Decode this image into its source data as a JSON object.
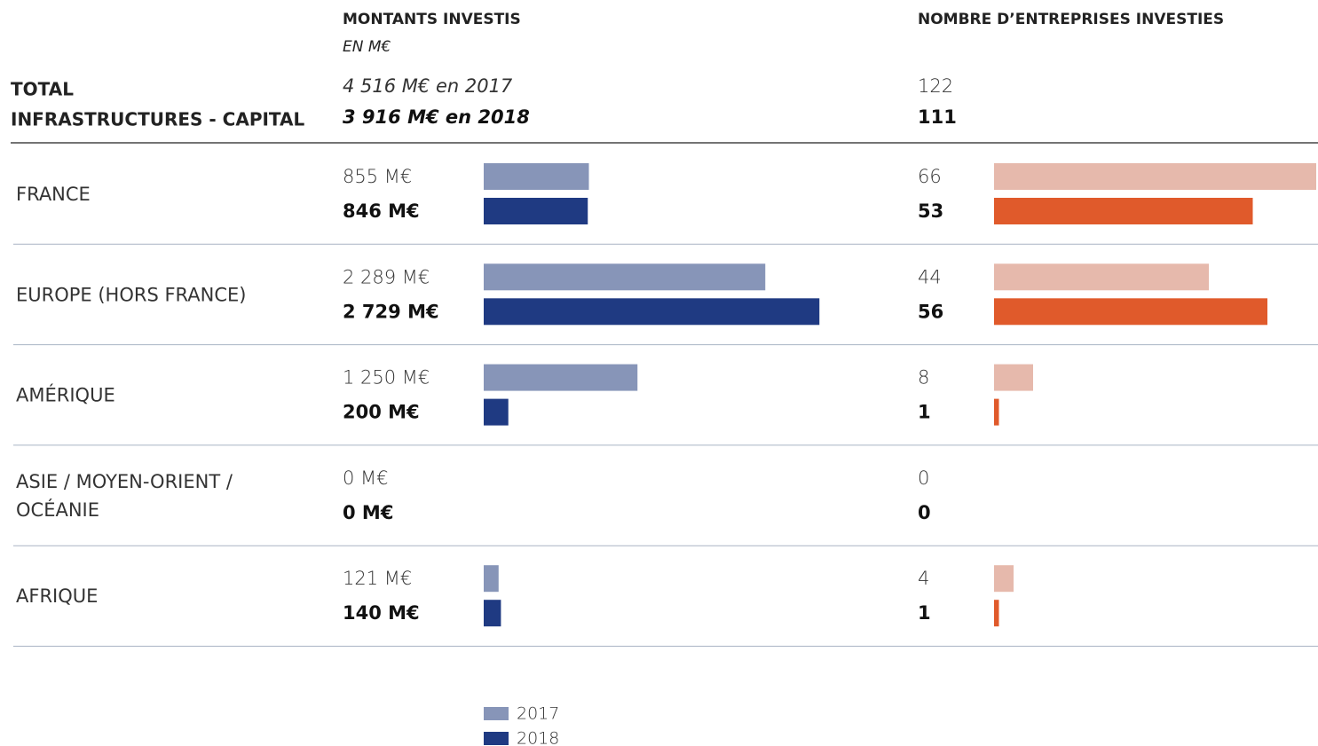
{
  "amounts_header": {
    "title": "MONTANTS INVESTIS",
    "unit": "EN M€"
  },
  "counts_header": "NOMBRE D’ENTREPRISES INVESTIES",
  "total": {
    "label_lines": [
      "TOTAL",
      "INFRASTRUCTURES - CAPITAL"
    ],
    "amounts": [
      4516,
      3916
    ],
    "amount_labels": [
      "4 516 M€ en 2017",
      "3 916 M€ en 2018"
    ],
    "counts": [
      122,
      111
    ]
  },
  "series": [
    {
      "name": "2017",
      "amount_color": "#8795b8",
      "count_color": "#e6b9ac"
    },
    {
      "name": "2018",
      "amount_color": "#1f3a82",
      "count_color": "#e05a2b"
    }
  ],
  "regions": [
    {
      "name_lines": [
        "FRANCE"
      ],
      "amounts": [
        855,
        846
      ],
      "amount_labels": [
        "855 M€",
        "846 M€"
      ],
      "counts": [
        66,
        53
      ]
    },
    {
      "name_lines": [
        "EUROPE (HORS FRANCE)"
      ],
      "amounts": [
        2289,
        2729
      ],
      "amount_labels": [
        "2 289 M€",
        "2 729 M€"
      ],
      "counts": [
        44,
        56
      ]
    },
    {
      "name_lines": [
        "AMÉRIQUE"
      ],
      "amounts": [
        1250,
        200
      ],
      "amount_labels": [
        "1 250 M€",
        "200 M€"
      ],
      "counts": [
        8,
        1
      ]
    },
    {
      "name_lines": [
        "ASIE / MOYEN-ORIENT /",
        " OCÉANIE"
      ],
      "amounts": [
        0,
        0
      ],
      "amount_labels": [
        "0 M€",
        "0 M€"
      ],
      "counts": [
        0,
        0
      ]
    },
    {
      "name_lines": [
        "AFRIQUE"
      ],
      "amounts": [
        121,
        140
      ],
      "amount_labels": [
        "121 M€",
        "140 M€"
      ],
      "counts": [
        4,
        1
      ]
    }
  ]
}
